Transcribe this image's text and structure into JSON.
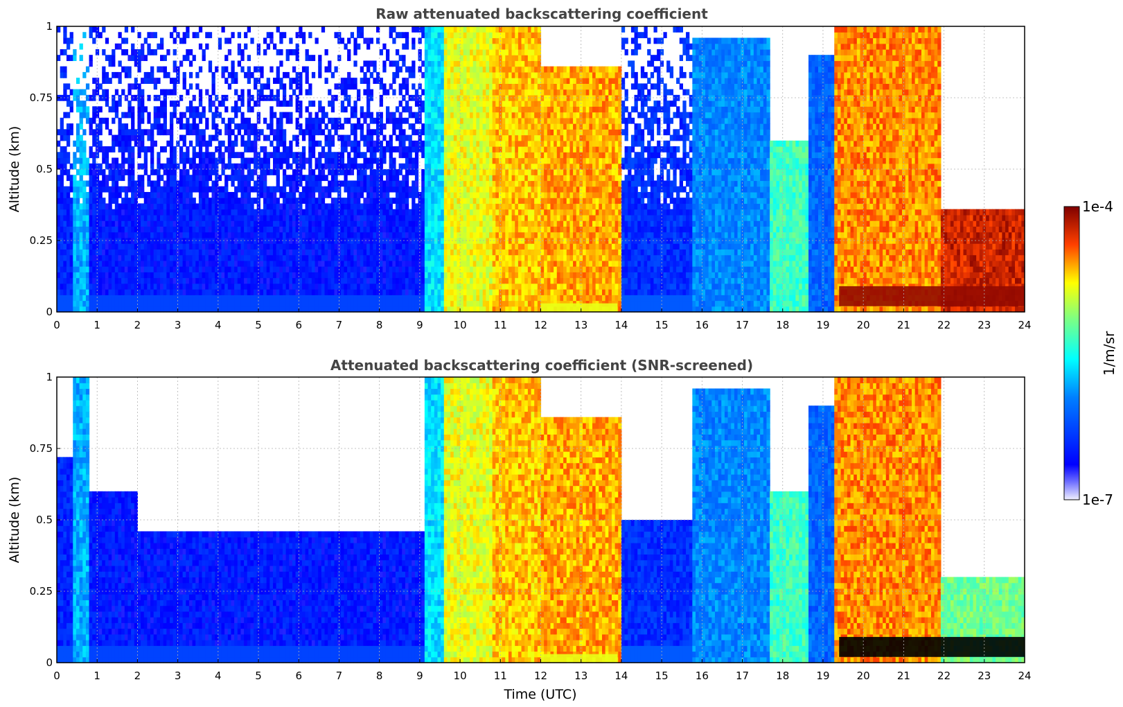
{
  "chart_data": [
    {
      "type": "heatmap",
      "title": "Raw attenuated backscattering coefficient",
      "xlabel": "",
      "ylabel": "Altitude (km)",
      "xlim": [
        0,
        24
      ],
      "ylim": [
        0,
        1
      ],
      "x_ticks": [
        "0",
        "1",
        "2",
        "3",
        "4",
        "5",
        "6",
        "7",
        "8",
        "9",
        "10",
        "11",
        "12",
        "13",
        "14",
        "15",
        "16",
        "17",
        "18",
        "19",
        "20",
        "21",
        "22",
        "23",
        "24"
      ],
      "y_ticks": [
        "0",
        "0.25",
        "0.5",
        "0.75",
        "1"
      ],
      "grid": true,
      "colorscale": "jet",
      "screened": false,
      "time_segments": [
        {
          "start": 0.0,
          "end": 0.4,
          "level": 0.18,
          "top": 1.0,
          "noise": true
        },
        {
          "start": 0.4,
          "end": 0.75,
          "level": 0.4,
          "top": 1.0,
          "noise": true
        },
        {
          "start": 0.75,
          "end": 9.1,
          "level": 0.16,
          "top": 1.0,
          "noise": true
        },
        {
          "start": 9.1,
          "end": 9.6,
          "level": 0.45,
          "top": 1.0,
          "noise": false
        },
        {
          "start": 9.6,
          "end": 10.8,
          "level": 0.72,
          "top": 1.0,
          "noise": false
        },
        {
          "start": 10.8,
          "end": 12.0,
          "level": 0.78,
          "top": 1.0,
          "noise": false
        },
        {
          "start": 12.0,
          "end": 14.0,
          "level": 0.8,
          "top": 0.85,
          "noise": false
        },
        {
          "start": 14.0,
          "end": 15.7,
          "level": 0.2,
          "top": 1.0,
          "noise": true
        },
        {
          "start": 15.7,
          "end": 17.6,
          "level": 0.35,
          "top": 0.95,
          "noise": false
        },
        {
          "start": 17.6,
          "end": 18.6,
          "level": 0.55,
          "top": 0.6,
          "noise": false
        },
        {
          "start": 18.6,
          "end": 19.2,
          "level": 0.3,
          "top": 0.9,
          "noise": false
        },
        {
          "start": 19.2,
          "end": 21.9,
          "level": 0.82,
          "top": 1.0,
          "noise": false
        },
        {
          "start": 21.9,
          "end": 24.0,
          "level": 0.92,
          "top": 0.35,
          "noise": true
        }
      ],
      "dense_layers": [
        {
          "start": 19.4,
          "end": 24.0,
          "bottom": 0.02,
          "top": 0.09
        },
        {
          "start": 12.0,
          "end": 13.9,
          "bottom": 0.0,
          "top": 0.03
        }
      ]
    },
    {
      "type": "heatmap",
      "title": "Attenuated backscattering coefficient (SNR-screened)",
      "xlabel": "Time (UTC)",
      "ylabel": "Altitude (km)",
      "xlim": [
        0,
        24
      ],
      "ylim": [
        0,
        1
      ],
      "x_ticks": [
        "0",
        "1",
        "2",
        "3",
        "4",
        "5",
        "6",
        "7",
        "8",
        "9",
        "10",
        "11",
        "12",
        "13",
        "14",
        "15",
        "16",
        "17",
        "18",
        "19",
        "20",
        "21",
        "22",
        "23",
        "24"
      ],
      "y_ticks": [
        "0",
        "0.25",
        "0.5",
        "0.75",
        "1"
      ],
      "grid": true,
      "colorscale": "jet",
      "screened": true,
      "time_segments": [
        {
          "start": 0.0,
          "end": 0.4,
          "level": 0.18,
          "top": 0.72,
          "noise": false
        },
        {
          "start": 0.4,
          "end": 0.75,
          "level": 0.4,
          "top": 1.0,
          "noise": false
        },
        {
          "start": 0.75,
          "end": 2.0,
          "level": 0.16,
          "top": 0.6,
          "noise": false
        },
        {
          "start": 2.0,
          "end": 9.1,
          "level": 0.16,
          "top": 0.45,
          "noise": false
        },
        {
          "start": 9.1,
          "end": 9.6,
          "level": 0.45,
          "top": 1.0,
          "noise": false
        },
        {
          "start": 9.6,
          "end": 10.8,
          "level": 0.72,
          "top": 1.0,
          "noise": false
        },
        {
          "start": 10.8,
          "end": 12.0,
          "level": 0.78,
          "top": 1.0,
          "noise": false
        },
        {
          "start": 12.0,
          "end": 14.0,
          "level": 0.8,
          "top": 0.85,
          "noise": false
        },
        {
          "start": 14.0,
          "end": 15.7,
          "level": 0.2,
          "top": 0.5,
          "noise": false
        },
        {
          "start": 15.7,
          "end": 17.6,
          "level": 0.35,
          "top": 0.95,
          "noise": false
        },
        {
          "start": 17.6,
          "end": 18.6,
          "level": 0.55,
          "top": 0.6,
          "noise": false
        },
        {
          "start": 18.6,
          "end": 19.2,
          "level": 0.3,
          "top": 0.9,
          "noise": false
        },
        {
          "start": 19.2,
          "end": 21.9,
          "level": 0.82,
          "top": 1.0,
          "noise": false
        },
        {
          "start": 21.9,
          "end": 24.0,
          "level": 0.6,
          "top": 0.3,
          "noise": false
        }
      ],
      "dense_layers": [
        {
          "start": 19.4,
          "end": 24.0,
          "bottom": 0.02,
          "top": 0.09
        },
        {
          "start": 12.0,
          "end": 13.9,
          "bottom": 0.0,
          "top": 0.03
        }
      ]
    }
  ],
  "colorbar": {
    "max_label": "1e-4",
    "min_label": "1e-7",
    "unit_label": "1/m/sr",
    "colors": [
      "#f0f0ff",
      "#0000ff",
      "#00ffff",
      "#ffff00",
      "#ff0000",
      "#7f0000"
    ]
  }
}
